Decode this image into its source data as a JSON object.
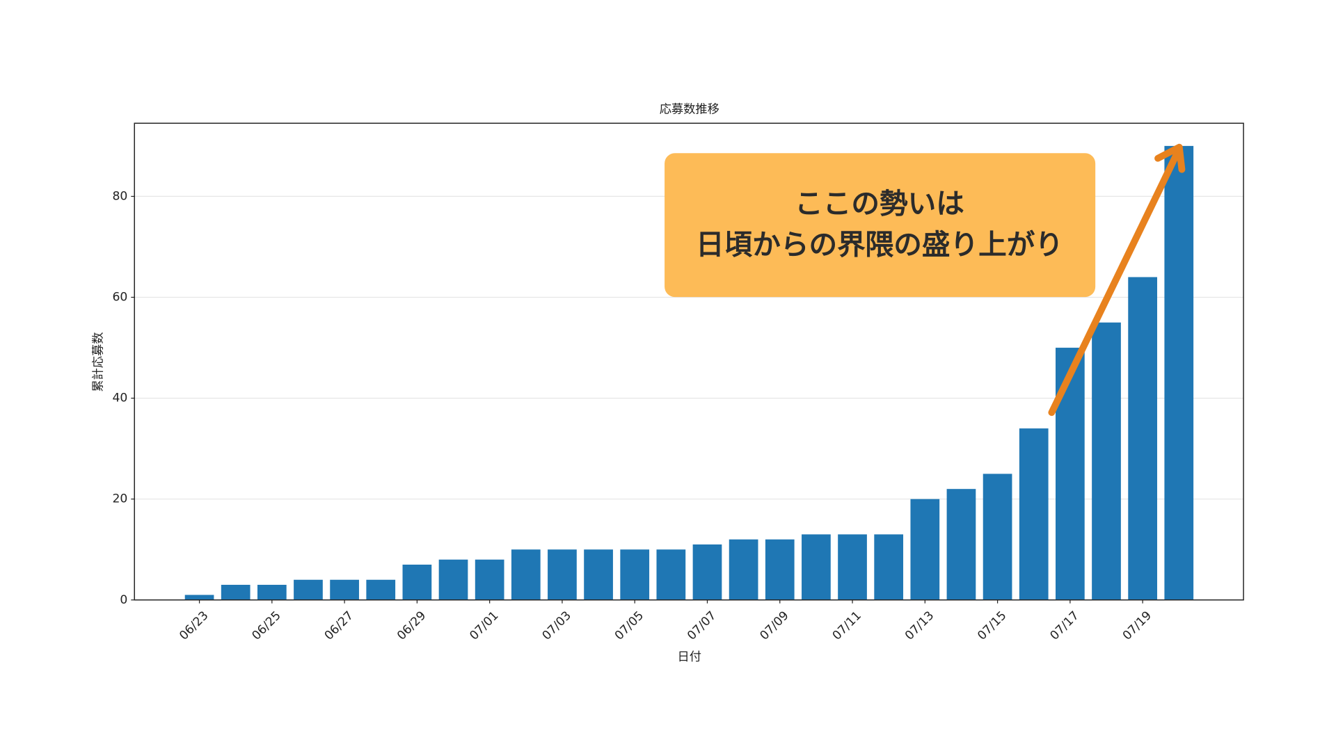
{
  "chart_data": {
    "type": "bar",
    "title": "応募数推移",
    "xlabel": "日付",
    "ylabel": "累計応募数",
    "categories": [
      "06/23",
      null,
      "06/25",
      null,
      "06/27",
      null,
      "06/29",
      null,
      "07/01",
      null,
      "07/03",
      null,
      "07/05",
      null,
      "07/07",
      null,
      "07/09",
      null,
      "07/11",
      null,
      "07/13",
      null,
      "07/15",
      null,
      "07/17",
      null,
      "07/19",
      null
    ],
    "values": [
      1,
      3,
      3,
      4,
      4,
      4,
      7,
      8,
      8,
      10,
      10,
      10,
      10,
      10,
      11,
      12,
      12,
      13,
      13,
      13,
      20,
      22,
      25,
      34,
      50,
      55,
      64,
      90
    ],
    "color": "#1f77b4",
    "ylim": [
      0,
      94.5
    ],
    "yticks": [
      0,
      20,
      40,
      60,
      80
    ],
    "grid": true,
    "annotation": {
      "lines": [
        "ここの勢いは",
        "日頃からの界隈の盛り上がり"
      ],
      "box_color": "#fdbb57",
      "arrow_color": "#e8821e"
    }
  }
}
